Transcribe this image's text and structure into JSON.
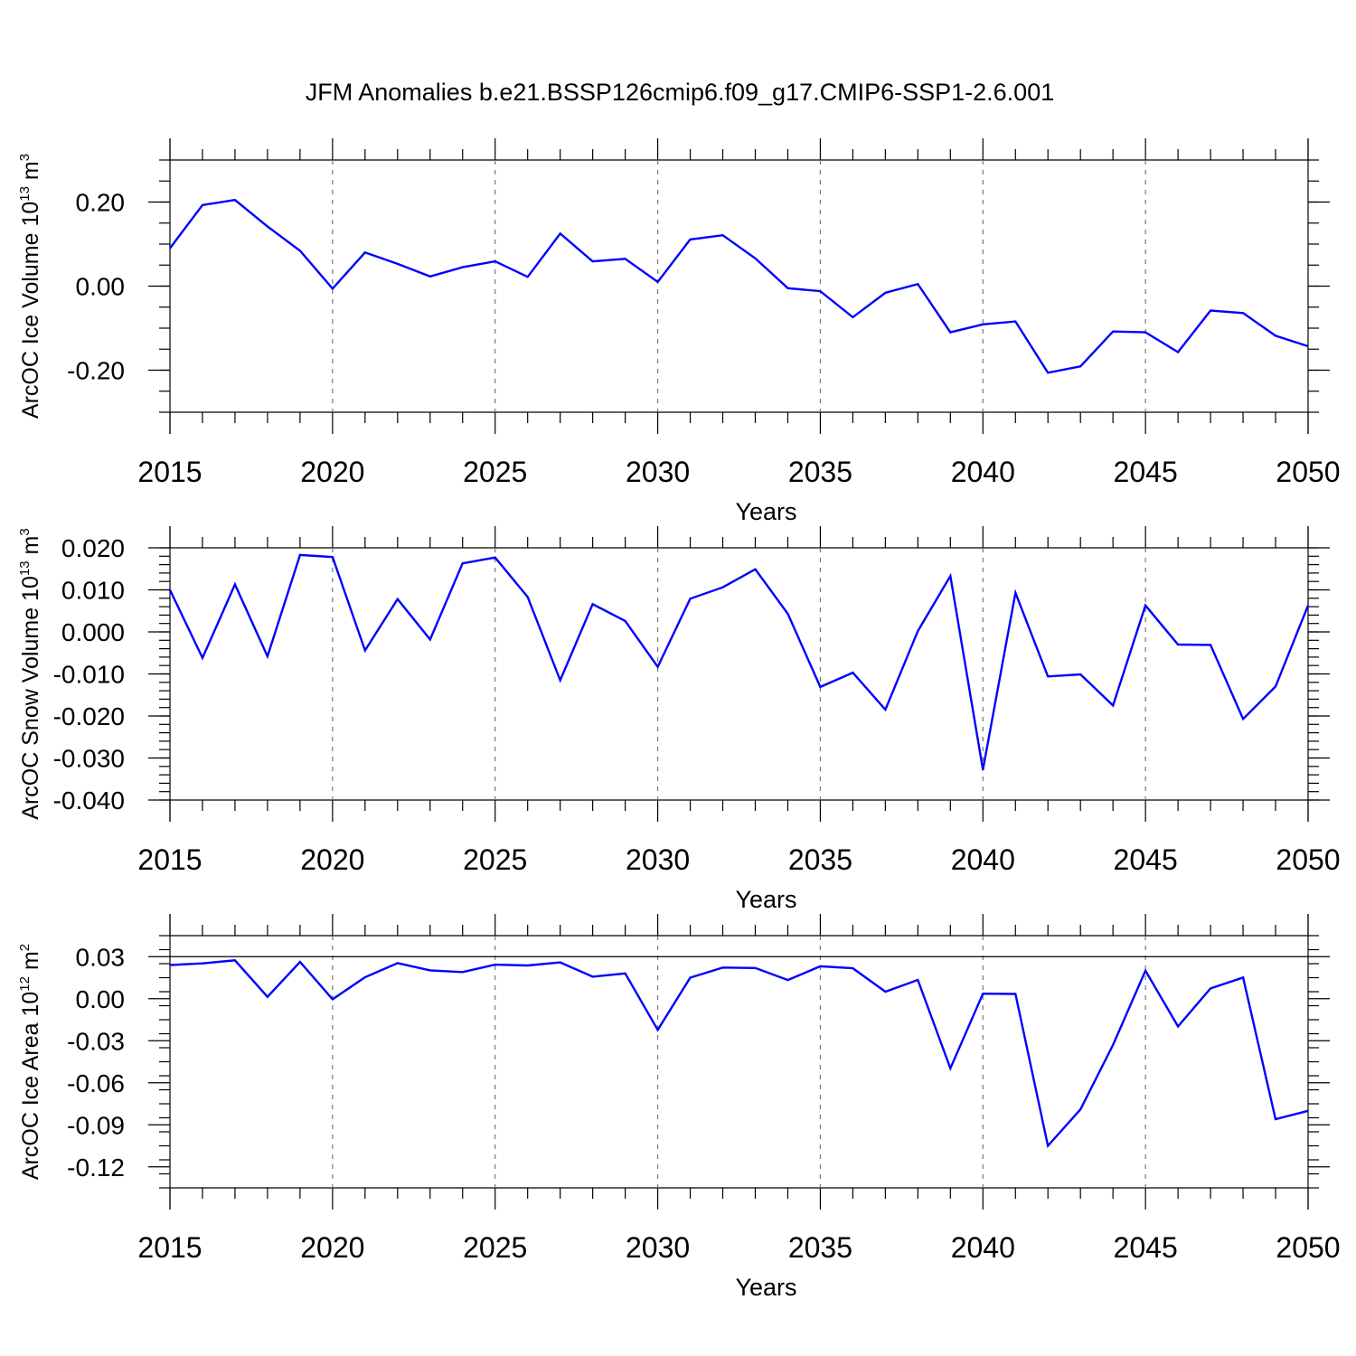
{
  "title": "JFM Anomalies b.e21.BSSP126cmip6.f09_g17.CMIP6-SSP1-2.6.001",
  "colors": {
    "line": "#0000ff",
    "axes": "#000000",
    "grid": "#777777"
  },
  "chart_data": [
    {
      "type": "line",
      "ylabel": {
        "main": "ArcOC Ice Volume 10",
        "sup1": "13",
        "mid": " m",
        "sup2": "3"
      },
      "xlabel": "Years",
      "xlim": [
        2015,
        2050
      ],
      "ylim": [
        -0.3,
        0.3
      ],
      "x_ticks": [
        "2015",
        "2020",
        "2025",
        "2030",
        "2035",
        "2040",
        "2045",
        "2050"
      ],
      "y_ticks": [
        {
          "value": 0.2,
          "label": "0.20"
        },
        {
          "value": 0.0,
          "label": "0.00"
        },
        {
          "value": -0.2,
          "label": "-0.20"
        }
      ],
      "y_minor_step": 0.05,
      "x": [
        2015,
        2016,
        2017,
        2018,
        2019,
        2020,
        2021,
        2022,
        2023,
        2024,
        2025,
        2026,
        2027,
        2028,
        2029,
        2030,
        2031,
        2032,
        2033,
        2034,
        2035,
        2036,
        2037,
        2038,
        2039,
        2040,
        2041,
        2042,
        2043,
        2044,
        2045,
        2046,
        2047,
        2048,
        2049,
        2050
      ],
      "values": [
        0.09,
        0.193,
        0.205,
        0.142,
        0.084,
        -0.006,
        0.08,
        0.053,
        0.023,
        0.045,
        0.059,
        0.022,
        0.125,
        0.059,
        0.065,
        0.01,
        0.111,
        0.121,
        0.066,
        -0.005,
        -0.012,
        -0.074,
        -0.016,
        0.005,
        -0.11,
        -0.091,
        -0.084,
        -0.206,
        -0.191,
        -0.108,
        -0.11,
        -0.157,
        -0.058,
        -0.064,
        -0.118,
        -0.143
      ]
    },
    {
      "type": "line",
      "ylabel": {
        "main": "ArcOC Snow Volume 10",
        "sup1": "13",
        "mid": " m",
        "sup2": "3"
      },
      "xlabel": "Years",
      "xlim": [
        2015,
        2050
      ],
      "ylim": [
        -0.04,
        0.02
      ],
      "x_ticks": [
        "2015",
        "2020",
        "2025",
        "2030",
        "2035",
        "2040",
        "2045",
        "2050"
      ],
      "y_ticks": [
        {
          "value": 0.02,
          "label": "0.020"
        },
        {
          "value": 0.01,
          "label": "0.010"
        },
        {
          "value": 0.0,
          "label": "0.000"
        },
        {
          "value": -0.01,
          "label": "-0.010"
        },
        {
          "value": -0.02,
          "label": "-0.020"
        },
        {
          "value": -0.03,
          "label": "-0.030"
        },
        {
          "value": -0.04,
          "label": "-0.040"
        }
      ],
      "y_minor_step": 0.002,
      "x": [
        2015,
        2016,
        2017,
        2018,
        2019,
        2020,
        2021,
        2022,
        2023,
        2024,
        2025,
        2026,
        2027,
        2028,
        2029,
        2030,
        2031,
        2032,
        2033,
        2034,
        2035,
        2036,
        2037,
        2038,
        2039,
        2040,
        2041,
        2042,
        2043,
        2044,
        2045,
        2046,
        2047,
        2048,
        2049,
        2050
      ],
      "values": [
        0.01,
        -0.0062,
        0.0113,
        -0.0058,
        0.0183,
        0.0178,
        -0.0044,
        0.0078,
        -0.0018,
        0.0163,
        0.0177,
        0.0083,
        -0.0115,
        0.0066,
        0.0026,
        -0.0083,
        0.0079,
        0.0106,
        0.0149,
        0.0043,
        -0.0131,
        -0.0097,
        -0.0185,
        0.0002,
        0.0133,
        -0.0328,
        0.0093,
        -0.0106,
        -0.0101,
        -0.0175,
        0.0063,
        -0.003,
        -0.0031,
        -0.0207,
        -0.013,
        0.0063
      ]
    },
    {
      "type": "line",
      "ylabel": {
        "main": "ArcOC Ice Area 10",
        "sup1": "12",
        "mid": " m",
        "sup2": "2"
      },
      "xlabel": "Years",
      "xlim": [
        2015,
        2050
      ],
      "ylim": [
        -0.135,
        0.045
      ],
      "x_ticks": [
        "2015",
        "2020",
        "2025",
        "2030",
        "2035",
        "2040",
        "2045",
        "2050"
      ],
      "y_ticks": [
        {
          "value": 0.03,
          "label": "0.03"
        },
        {
          "value": 0.0,
          "label": "0.00"
        },
        {
          "value": -0.03,
          "label": "-0.03"
        },
        {
          "value": -0.06,
          "label": "-0.06"
        },
        {
          "value": -0.09,
          "label": "-0.09"
        },
        {
          "value": -0.12,
          "label": "-0.12"
        }
      ],
      "y_hline": 0.03,
      "y_minor_step": 0.01,
      "x": [
        2015,
        2016,
        2017,
        2018,
        2019,
        2020,
        2021,
        2022,
        2023,
        2024,
        2025,
        2026,
        2027,
        2028,
        2029,
        2030,
        2031,
        2032,
        2033,
        2034,
        2035,
        2036,
        2037,
        2038,
        2039,
        2040,
        2041,
        2042,
        2043,
        2044,
        2045,
        2046,
        2047,
        2048,
        2049,
        2050
      ],
      "values": [
        0.024,
        0.0252,
        0.0274,
        0.0013,
        0.0262,
        -0.0004,
        0.0153,
        0.0254,
        0.0202,
        0.019,
        0.0243,
        0.0237,
        0.0259,
        0.0157,
        0.018,
        -0.0223,
        0.015,
        0.0222,
        0.0219,
        0.0133,
        0.0231,
        0.0217,
        0.005,
        0.0134,
        -0.0497,
        0.0036,
        0.0034,
        -0.105,
        -0.079,
        -0.033,
        0.02,
        -0.0198,
        0.0073,
        0.0151,
        -0.086,
        -0.08
      ]
    }
  ]
}
